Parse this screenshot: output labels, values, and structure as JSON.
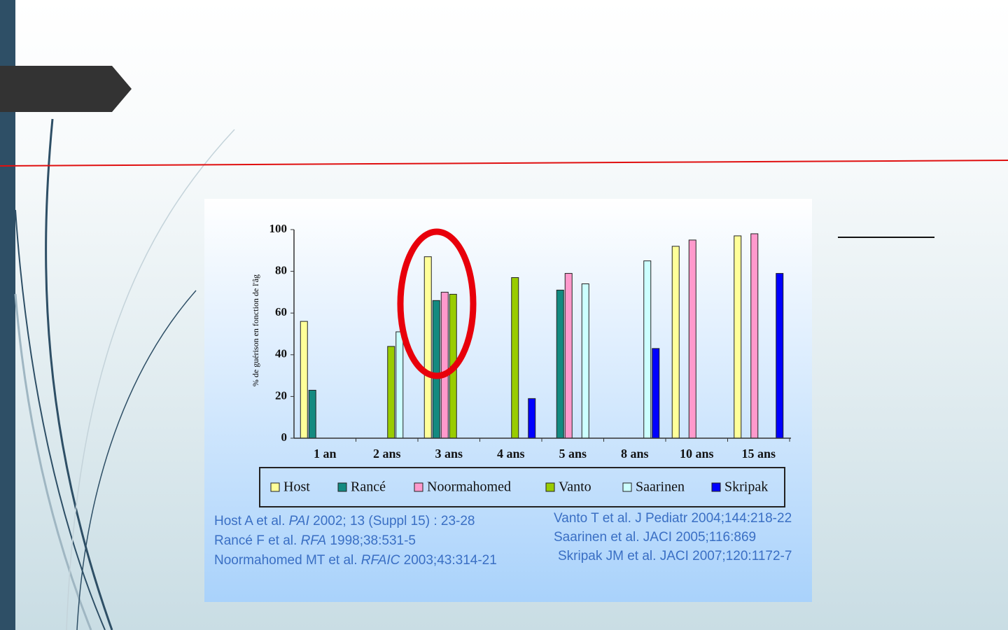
{
  "chart_data": {
    "type": "bar",
    "y_label": "% de guérison en fonction de l'âg",
    "categories": [
      "1 an",
      "2 ans",
      "3 ans",
      "4 ans",
      "5 ans",
      "8 ans",
      "10 ans",
      "15 ans"
    ],
    "series": [
      {
        "name": "Host",
        "color": "#ffff99",
        "values": [
          56,
          null,
          87,
          null,
          null,
          null,
          92,
          97
        ]
      },
      {
        "name": "Rancé",
        "color": "#138a80",
        "values": [
          23,
          null,
          66,
          null,
          71,
          null,
          null,
          null
        ]
      },
      {
        "name": "Noormahomed",
        "color": "#ff99cc",
        "values": [
          null,
          null,
          70,
          null,
          79,
          null,
          95,
          98
        ]
      },
      {
        "name": "Vanto",
        "color": "#99cc00",
        "values": [
          null,
          44,
          69,
          77,
          null,
          null,
          null,
          null
        ]
      },
      {
        "name": "Saarinen",
        "color": "#ccffff",
        "values": [
          null,
          51,
          null,
          null,
          74,
          85,
          null,
          null
        ]
      },
      {
        "name": "Skripak",
        "color": "#0000ff",
        "values": [
          null,
          null,
          null,
          19,
          null,
          43,
          null,
          79
        ]
      }
    ],
    "ylim": [
      0,
      100
    ],
    "yticks": [
      0,
      20,
      40,
      60,
      80,
      100
    ],
    "grid": false
  },
  "references": {
    "left": [
      [
        "Host A et al. ",
        "PAI",
        " 2002; 13 (Suppl 15) : 23-28"
      ],
      [
        "Rancé F et al. ",
        "RFA",
        " 1998;38:531-5"
      ],
      [
        "Noormahomed MT et al. ",
        "RFAIC",
        " 2003;43:314-21"
      ]
    ],
    "right": [
      "Vanto T et al. J Pediatr 2004;144:218-22",
      "Saarinen et al. JACI 2005;116:869",
      "Skripak JM et al. JACI 2007;120:1172-7"
    ]
  }
}
